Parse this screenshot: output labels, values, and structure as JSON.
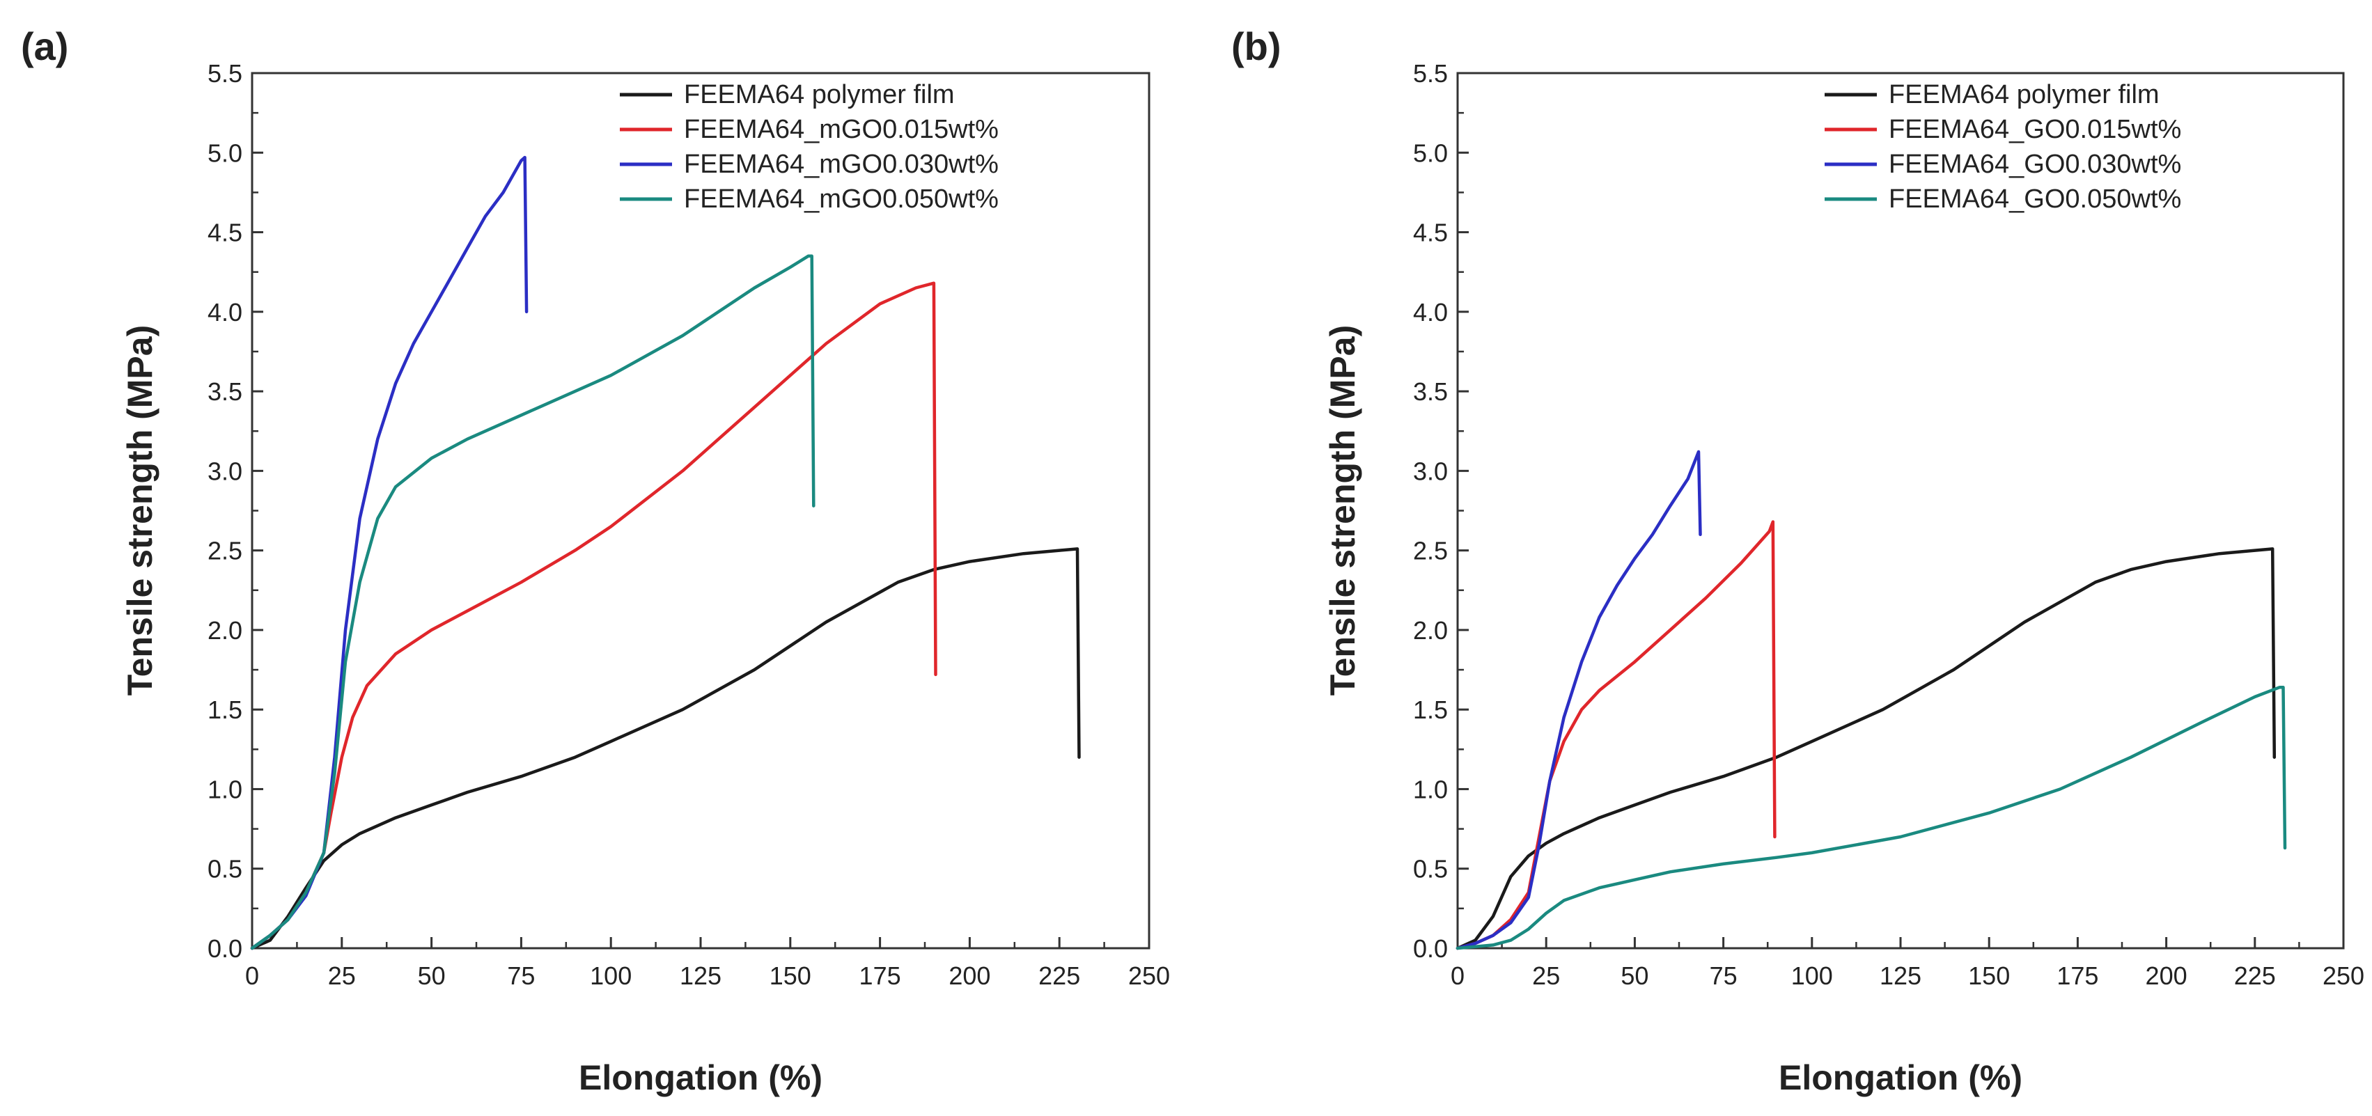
{
  "figure": {
    "panels": [
      "(a)",
      "(b)"
    ]
  },
  "chart_data": [
    {
      "type": "line",
      "panel_label": "(a)",
      "xlabel": "Elongation (%)",
      "ylabel": "Tensile strength (MPa)",
      "xlim": [
        0,
        250
      ],
      "ylim": [
        0,
        5.5
      ],
      "xticks": [
        "0",
        "25",
        "50",
        "75",
        "100",
        "125",
        "150",
        "175",
        "200",
        "225",
        "250"
      ],
      "yticks": [
        "0.0",
        "0.5",
        "1.0",
        "1.5",
        "2.0",
        "2.5",
        "3.0",
        "3.5",
        "4.0",
        "4.5",
        "5.0",
        "5.5"
      ],
      "grid": false,
      "legend_position": "top-right",
      "series": [
        {
          "name": "FEEMA64 polymer film",
          "color": "#1a1a1a",
          "points": [
            [
              0,
              0
            ],
            [
              5,
              0.05
            ],
            [
              10,
              0.2
            ],
            [
              15,
              0.38
            ],
            [
              20,
              0.55
            ],
            [
              25,
              0.65
            ],
            [
              30,
              0.72
            ],
            [
              40,
              0.82
            ],
            [
              50,
              0.9
            ],
            [
              60,
              0.98
            ],
            [
              75,
              1.08
            ],
            [
              90,
              1.2
            ],
            [
              100,
              1.3
            ],
            [
              120,
              1.5
            ],
            [
              140,
              1.75
            ],
            [
              160,
              2.05
            ],
            [
              180,
              2.3
            ],
            [
              190,
              2.38
            ],
            [
              200,
              2.43
            ],
            [
              215,
              2.48
            ],
            [
              225,
              2.5
            ],
            [
              230,
              2.51
            ],
            [
              230.5,
              1.2
            ]
          ]
        },
        {
          "name": "FEEMA64_mGO0.015wt%",
          "color": "#e0262b",
          "points": [
            [
              0,
              0
            ],
            [
              5,
              0.08
            ],
            [
              10,
              0.18
            ],
            [
              15,
              0.35
            ],
            [
              20,
              0.6
            ],
            [
              22,
              0.85
            ],
            [
              25,
              1.2
            ],
            [
              28,
              1.45
            ],
            [
              32,
              1.65
            ],
            [
              40,
              1.85
            ],
            [
              50,
              2.0
            ],
            [
              60,
              2.12
            ],
            [
              75,
              2.3
            ],
            [
              90,
              2.5
            ],
            [
              100,
              2.65
            ],
            [
              120,
              3.0
            ],
            [
              140,
              3.4
            ],
            [
              160,
              3.8
            ],
            [
              175,
              4.05
            ],
            [
              185,
              4.15
            ],
            [
              190,
              4.18
            ],
            [
              190.5,
              1.72
            ]
          ]
        },
        {
          "name": "FEEMA64_mGO0.030wt%",
          "color": "#2b2ec4",
          "points": [
            [
              0,
              0
            ],
            [
              5,
              0.08
            ],
            [
              10,
              0.18
            ],
            [
              15,
              0.33
            ],
            [
              20,
              0.6
            ],
            [
              23,
              1.2
            ],
            [
              26,
              2.0
            ],
            [
              30,
              2.7
            ],
            [
              35,
              3.2
            ],
            [
              40,
              3.55
            ],
            [
              45,
              3.8
            ],
            [
              50,
              4.0
            ],
            [
              55,
              4.2
            ],
            [
              60,
              4.4
            ],
            [
              65,
              4.6
            ],
            [
              70,
              4.75
            ],
            [
              75,
              4.95
            ],
            [
              76,
              4.97
            ],
            [
              76.5,
              4.0
            ]
          ]
        },
        {
          "name": "FEEMA64_mGO0.050wt%",
          "color": "#1a8a80",
          "points": [
            [
              0,
              0
            ],
            [
              5,
              0.08
            ],
            [
              10,
              0.18
            ],
            [
              15,
              0.35
            ],
            [
              20,
              0.6
            ],
            [
              23,
              1.1
            ],
            [
              26,
              1.8
            ],
            [
              30,
              2.3
            ],
            [
              35,
              2.7
            ],
            [
              40,
              2.9
            ],
            [
              50,
              3.08
            ],
            [
              60,
              3.2
            ],
            [
              70,
              3.3
            ],
            [
              80,
              3.4
            ],
            [
              100,
              3.6
            ],
            [
              120,
              3.85
            ],
            [
              130,
              4.0
            ],
            [
              140,
              4.15
            ],
            [
              150,
              4.28
            ],
            [
              155,
              4.35
            ],
            [
              156,
              4.35
            ],
            [
              156.5,
              2.78
            ]
          ]
        }
      ]
    },
    {
      "type": "line",
      "panel_label": "(b)",
      "xlabel": "Elongation (%)",
      "ylabel": "Tensile strength (MPa)",
      "xlim": [
        0,
        250
      ],
      "ylim": [
        0,
        5.5
      ],
      "xticks": [
        "0",
        "25",
        "50",
        "75",
        "100",
        "125",
        "150",
        "175",
        "200",
        "225",
        "250"
      ],
      "yticks": [
        "0.0",
        "0.5",
        "1.0",
        "1.5",
        "2.0",
        "2.5",
        "3.0",
        "3.5",
        "4.0",
        "4.5",
        "5.0",
        "5.5"
      ],
      "grid": false,
      "legend_position": "top-right",
      "series": [
        {
          "name": "FEEMA64 polymer film",
          "color": "#1a1a1a",
          "points": [
            [
              0,
              0
            ],
            [
              5,
              0.05
            ],
            [
              10,
              0.2
            ],
            [
              15,
              0.45
            ],
            [
              20,
              0.58
            ],
            [
              25,
              0.66
            ],
            [
              30,
              0.72
            ],
            [
              40,
              0.82
            ],
            [
              50,
              0.9
            ],
            [
              60,
              0.98
            ],
            [
              75,
              1.08
            ],
            [
              90,
              1.2
            ],
            [
              100,
              1.3
            ],
            [
              120,
              1.5
            ],
            [
              140,
              1.75
            ],
            [
              160,
              2.05
            ],
            [
              180,
              2.3
            ],
            [
              190,
              2.38
            ],
            [
              200,
              2.43
            ],
            [
              215,
              2.48
            ],
            [
              225,
              2.5
            ],
            [
              230,
              2.51
            ],
            [
              230.5,
              1.2
            ]
          ]
        },
        {
          "name": "FEEMA64_GO0.015wt%",
          "color": "#e0262b",
          "points": [
            [
              0,
              0
            ],
            [
              5,
              0.03
            ],
            [
              10,
              0.08
            ],
            [
              15,
              0.18
            ],
            [
              20,
              0.35
            ],
            [
              23,
              0.7
            ],
            [
              26,
              1.05
            ],
            [
              30,
              1.3
            ],
            [
              35,
              1.5
            ],
            [
              40,
              1.62
            ],
            [
              50,
              1.8
            ],
            [
              60,
              2.0
            ],
            [
              70,
              2.2
            ],
            [
              80,
              2.42
            ],
            [
              88,
              2.62
            ],
            [
              89,
              2.68
            ],
            [
              89.5,
              0.7
            ]
          ]
        },
        {
          "name": "FEEMA64_GO0.030wt%",
          "color": "#2b2ec4",
          "points": [
            [
              0,
              0
            ],
            [
              5,
              0.03
            ],
            [
              10,
              0.08
            ],
            [
              15,
              0.16
            ],
            [
              20,
              0.32
            ],
            [
              23,
              0.65
            ],
            [
              26,
              1.05
            ],
            [
              30,
              1.45
            ],
            [
              35,
              1.8
            ],
            [
              40,
              2.08
            ],
            [
              45,
              2.28
            ],
            [
              50,
              2.45
            ],
            [
              55,
              2.6
            ],
            [
              60,
              2.78
            ],
            [
              65,
              2.95
            ],
            [
              68,
              3.12
            ],
            [
              68.5,
              2.6
            ]
          ]
        },
        {
          "name": "FEEMA64_GO0.050wt%",
          "color": "#1a8a80",
          "points": [
            [
              0,
              0
            ],
            [
              5,
              0.01
            ],
            [
              10,
              0.02
            ],
            [
              15,
              0.05
            ],
            [
              20,
              0.12
            ],
            [
              25,
              0.22
            ],
            [
              30,
              0.3
            ],
            [
              40,
              0.38
            ],
            [
              50,
              0.43
            ],
            [
              60,
              0.48
            ],
            [
              75,
              0.53
            ],
            [
              90,
              0.57
            ],
            [
              100,
              0.6
            ],
            [
              125,
              0.7
            ],
            [
              150,
              0.85
            ],
            [
              170,
              1.0
            ],
            [
              190,
              1.2
            ],
            [
              210,
              1.42
            ],
            [
              225,
              1.58
            ],
            [
              232,
              1.64
            ],
            [
              233,
              1.64
            ],
            [
              233.5,
              0.63
            ]
          ]
        }
      ]
    }
  ]
}
